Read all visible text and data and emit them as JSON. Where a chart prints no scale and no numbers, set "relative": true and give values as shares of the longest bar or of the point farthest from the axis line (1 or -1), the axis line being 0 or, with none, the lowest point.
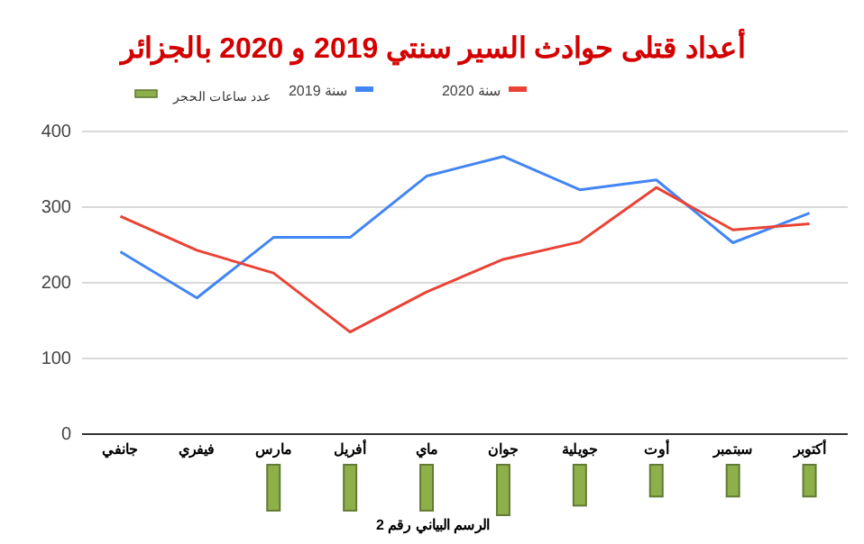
{
  "chart_data": [
    {
      "type": "line",
      "title": "أعداد قتلى حوادث السير سنتي 2019 و 2020 بالجزائر",
      "categories": [
        "جانفي",
        "فيفري",
        "مارس",
        "أفريل",
        "ماي",
        "جوان",
        "جويلية",
        "أوت",
        "سبتمبر",
        "أكتوبر"
      ],
      "series": [
        {
          "name": "سنة 2019",
          "color": "#4285f4",
          "values": [
            241,
            180,
            260,
            260,
            341,
            367,
            323,
            336,
            253,
            292
          ]
        },
        {
          "name": "سنة 2020",
          "color": "#ea4335",
          "values": [
            288,
            243,
            213,
            135,
            188,
            231,
            254,
            326,
            270,
            278
          ]
        }
      ],
      "ylim": [
        0,
        400
      ],
      "yticks": [
        0,
        100,
        200,
        300,
        400
      ],
      "grid": "y",
      "legend": "top",
      "line_style": "solid",
      "marker": "none"
    },
    {
      "type": "bar",
      "relative": true,
      "categories": [
        null,
        null,
        null,
        null,
        null,
        null,
        null,
        null,
        null,
        null
      ],
      "series": [
        {
          "name": "عدد ساعات الحجر",
          "color": "#8db04a",
          "values": [
            null,
            null,
            -0.91,
            -0.91,
            -0.91,
            -1,
            -0.81,
            -0.63,
            -0.63,
            -0.63
          ]
        }
      ],
      "legend": "top",
      "annotations": [
        "الرسم البياني رقم 2"
      ]
    }
  ]
}
